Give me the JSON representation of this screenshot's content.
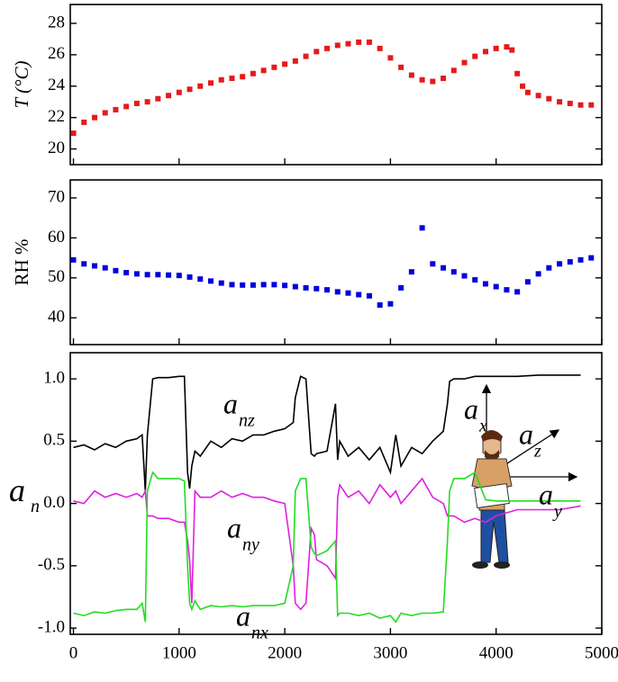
{
  "chart_data": [
    {
      "type": "scatter",
      "ylabel": "T (°C)",
      "color": "#e41a1c",
      "x": [
        0,
        100,
        200,
        300,
        400,
        500,
        600,
        700,
        800,
        900,
        1000,
        1100,
        1200,
        1300,
        1400,
        1500,
        1600,
        1700,
        1800,
        1900,
        2000,
        2100,
        2200,
        2300,
        2400,
        2500,
        2600,
        2700,
        2800,
        2900,
        3000,
        3100,
        3200,
        3300,
        3400,
        3500,
        3600,
        3700,
        3800,
        3900,
        4000,
        4100,
        4150,
        4200,
        4250,
        4300,
        4400,
        4500,
        4600,
        4700,
        4800,
        4900
      ],
      "values": [
        21.0,
        21.7,
        22.0,
        22.3,
        22.5,
        22.7,
        22.9,
        23.0,
        23.2,
        23.4,
        23.6,
        23.8,
        24.0,
        24.2,
        24.4,
        24.5,
        24.6,
        24.8,
        25.0,
        25.2,
        25.4,
        25.6,
        25.9,
        26.2,
        26.4,
        26.6,
        26.7,
        26.8,
        26.8,
        26.4,
        25.8,
        25.2,
        24.7,
        24.4,
        24.3,
        24.5,
        25.0,
        25.5,
        25.9,
        26.2,
        26.4,
        26.5,
        26.3,
        24.8,
        24.0,
        23.6,
        23.4,
        23.2,
        23.0,
        22.9,
        22.8,
        22.8
      ],
      "ylim": [
        19,
        29.2
      ],
      "yticks": [
        20,
        22,
        24,
        26,
        28
      ]
    },
    {
      "type": "scatter",
      "ylabel": "RH %",
      "color": "#0000dd",
      "x": [
        0,
        100,
        200,
        300,
        400,
        500,
        600,
        700,
        800,
        900,
        1000,
        1100,
        1200,
        1300,
        1400,
        1500,
        1600,
        1700,
        1800,
        1900,
        2000,
        2100,
        2200,
        2300,
        2400,
        2500,
        2600,
        2700,
        2800,
        2900,
        3000,
        3100,
        3200,
        3300,
        3400,
        3500,
        3600,
        3700,
        3800,
        3900,
        4000,
        4100,
        4200,
        4300,
        4400,
        4500,
        4600,
        4700,
        4800,
        4900
      ],
      "values": [
        54.5,
        53.5,
        53,
        52.5,
        51.8,
        51.3,
        51,
        50.8,
        50.8,
        50.7,
        50.6,
        50.2,
        49.7,
        49.2,
        48.7,
        48.3,
        48.2,
        48.2,
        48.3,
        48.3,
        48.1,
        47.8,
        47.5,
        47.3,
        47,
        46.5,
        46.2,
        45.8,
        45.5,
        43.2,
        43.5,
        47.5,
        51.5,
        62.5,
        53.5,
        52.5,
        51.5,
        50.5,
        49.5,
        48.5,
        47.8,
        47,
        46.5,
        49,
        51,
        52.5,
        53.5,
        54,
        54.5,
        55
      ],
      "ylim": [
        33.3,
        74.5
      ],
      "yticks": [
        40,
        50,
        60,
        70
      ]
    },
    {
      "type": "line",
      "ylabel": "a",
      "ylabel_subscript": "n",
      "x": [
        0,
        100,
        200,
        300,
        400,
        500,
        600,
        650,
        680,
        700,
        750,
        800,
        900,
        1000,
        1050,
        1080,
        1100,
        1120,
        1150,
        1200,
        1300,
        1400,
        1500,
        1600,
        1700,
        1800,
        1900,
        2000,
        2080,
        2100,
        2150,
        2200,
        2250,
        2280,
        2300,
        2400,
        2480,
        2500,
        2520,
        2600,
        2700,
        2800,
        2900,
        3000,
        3050,
        3100,
        3200,
        3300,
        3400,
        3500,
        3540,
        3560,
        3600,
        3700,
        3800,
        3900,
        4000,
        4200,
        4400,
        4600,
        4800
      ],
      "series": [
        {
          "color": "#000000",
          "values": [
            0.45,
            0.47,
            0.43,
            0.48,
            0.45,
            0.5,
            0.52,
            0.55,
            0.1,
            0.55,
            1.0,
            1.01,
            1.01,
            1.02,
            1.02,
            0.25,
            0.12,
            0.3,
            0.42,
            0.38,
            0.5,
            0.45,
            0.52,
            0.5,
            0.55,
            0.55,
            0.58,
            0.6,
            0.65,
            0.85,
            1.02,
            1.0,
            0.4,
            0.38,
            0.4,
            0.42,
            0.8,
            0.35,
            0.5,
            0.38,
            0.45,
            0.35,
            0.45,
            0.25,
            0.55,
            0.3,
            0.45,
            0.4,
            0.5,
            0.58,
            0.8,
            0.98,
            1.0,
            1.0,
            1.02,
            1.02,
            1.02,
            1.02,
            1.03,
            1.03,
            1.03
          ]
        },
        {
          "color": "#e020e0",
          "values": [
            0.02,
            0.0,
            0.1,
            0.05,
            0.08,
            0.05,
            0.08,
            0.05,
            0.1,
            -0.1,
            -0.1,
            -0.12,
            -0.12,
            -0.15,
            -0.15,
            -0.3,
            -0.45,
            -0.8,
            0.1,
            0.05,
            0.05,
            0.1,
            0.05,
            0.08,
            0.05,
            0.05,
            0.02,
            0.0,
            -0.5,
            -0.8,
            -0.85,
            -0.8,
            -0.2,
            -0.25,
            -0.45,
            -0.5,
            -0.6,
            0.05,
            0.15,
            0.05,
            0.1,
            0.0,
            0.15,
            0.05,
            0.1,
            0.0,
            0.1,
            0.2,
            0.05,
            0.0,
            -0.1,
            -0.1,
            -0.1,
            -0.15,
            -0.12,
            -0.15,
            -0.1,
            -0.05,
            -0.05,
            -0.05,
            -0.02
          ]
        },
        {
          "color": "#22dd22",
          "values": [
            -0.88,
            -0.9,
            -0.87,
            -0.88,
            -0.86,
            -0.85,
            -0.85,
            -0.8,
            -0.95,
            0.1,
            0.25,
            0.2,
            0.2,
            0.2,
            0.18,
            -0.5,
            -0.8,
            -0.85,
            -0.78,
            -0.85,
            -0.82,
            -0.83,
            -0.82,
            -0.83,
            -0.82,
            -0.82,
            -0.82,
            -0.8,
            -0.5,
            0.1,
            0.2,
            0.2,
            -0.35,
            -0.4,
            -0.42,
            -0.38,
            -0.3,
            -0.9,
            -0.88,
            -0.88,
            -0.9,
            -0.88,
            -0.92,
            -0.9,
            -0.95,
            -0.88,
            -0.9,
            -0.88,
            -0.88,
            -0.87,
            -0.3,
            0.1,
            0.2,
            0.2,
            0.25,
            0.03,
            0.02,
            0.02,
            0.02,
            0.02,
            0.02
          ]
        }
      ],
      "annotations": [
        {
          "text": "a",
          "subscript": "nz"
        },
        {
          "text": "a",
          "subscript": "ny"
        },
        {
          "text": "a",
          "subscript": "nx"
        },
        {
          "text": "a",
          "subscript": "x"
        },
        {
          "text": "a",
          "subscript": "z"
        },
        {
          "text": "a",
          "subscript": "y"
        }
      ],
      "xlim": [
        -30,
        5000
      ],
      "xticks": [
        0,
        1000,
        2000,
        3000,
        4000,
        5000
      ],
      "ylim": [
        -1.05,
        1.21
      ],
      "yticks": [
        {
          "value": 1.0,
          "label": "1.0"
        },
        0.5,
        {
          "value": 0.0,
          "label": "0.0"
        },
        -0.5,
        {
          "value": -1.0,
          "label": "-1.0"
        }
      ]
    }
  ]
}
